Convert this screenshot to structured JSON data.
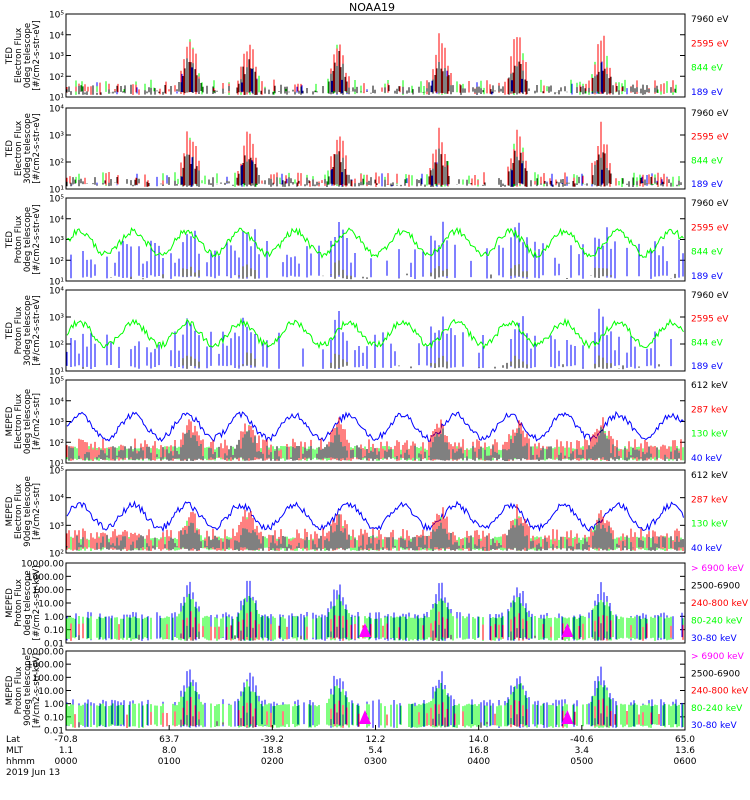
{
  "title": "NOAA19",
  "colors": {
    "black": "#000000",
    "red": "#ff0000",
    "green": "#00ff00",
    "blue": "#0000ff",
    "magenta": "#ff00ff"
  },
  "chart_data": {
    "type": "line",
    "x_ticks": [
      {
        "lat": "-70.8",
        "mlt": "1.1",
        "time": "0000"
      },
      {
        "lat": "63.7",
        "mlt": "8.0",
        "time": "0100"
      },
      {
        "lat": "-39.2",
        "mlt": "18.8",
        "time": "0200"
      },
      {
        "lat": "12.2",
        "mlt": "5.4",
        "time": "0300"
      },
      {
        "lat": "14.0",
        "mlt": "16.8",
        "time": "0400"
      },
      {
        "lat": "-40.6",
        "mlt": "3.4",
        "time": "0500"
      },
      {
        "lat": "65.0",
        "mlt": "13.6",
        "time": "0600"
      }
    ],
    "x_row_labels": [
      "Lat",
      "MLT",
      "hhmm"
    ],
    "date": "2019 Jun 13",
    "panels": [
      {
        "ylabel": [
          "TED",
          "Electron Flux",
          "0deg telescope",
          "[#/cm2-s-str-eV]"
        ],
        "yticks": [
          "10¹",
          "10²",
          "10³",
          "10⁴",
          "10⁵"
        ],
        "legend": [
          {
            "label": "7960 eV",
            "color": "#000000"
          },
          {
            "label": "2595 eV",
            "color": "#ff0000"
          },
          {
            "label": "844 eV",
            "color": "#00ff00"
          },
          {
            "label": "189 eV",
            "color": "#0000ff"
          }
        ]
      },
      {
        "ylabel": [
          "TED",
          "Electron Flux",
          "30deg telescope",
          "[#/cm2-s-str-eV]"
        ],
        "yticks": [
          "10¹",
          "10²",
          "10³",
          "10⁴"
        ],
        "legend": [
          {
            "label": "7960 eV",
            "color": "#000000"
          },
          {
            "label": "2595 eV",
            "color": "#ff0000"
          },
          {
            "label": "844 eV",
            "color": "#00ff00"
          },
          {
            "label": "189 eV",
            "color": "#0000ff"
          }
        ]
      },
      {
        "ylabel": [
          "TED",
          "Proton Flux",
          "0deg telescope",
          "[#/cm2-s-str-eV]"
        ],
        "yticks": [
          "10¹",
          "10²",
          "10³",
          "10⁴",
          "10⁵"
        ],
        "legend": [
          {
            "label": "7960 eV",
            "color": "#000000"
          },
          {
            "label": "2595 eV",
            "color": "#ff0000"
          },
          {
            "label": "844 eV",
            "color": "#00ff00"
          },
          {
            "label": "189 eV",
            "color": "#0000ff"
          }
        ]
      },
      {
        "ylabel": [
          "TED",
          "Proton Flux",
          "30deg telescope",
          "[#/cm2-s-str-eV]"
        ],
        "yticks": [
          "10¹",
          "10²",
          "10³",
          "10⁴"
        ],
        "legend": [
          {
            "label": "7960 eV",
            "color": "#000000"
          },
          {
            "label": "2595 eV",
            "color": "#ff0000"
          },
          {
            "label": "844 eV",
            "color": "#00ff00"
          },
          {
            "label": "189 eV",
            "color": "#0000ff"
          }
        ]
      },
      {
        "ylabel": [
          "MEPED",
          "Electron Flux",
          "0deg telescope",
          "[#/cm2-s-str]"
        ],
        "yticks": [
          "10¹",
          "10²",
          "10³",
          "10⁴",
          "10⁵"
        ],
        "legend": [
          {
            "label": "612 keV",
            "color": "#000000"
          },
          {
            "label": "287 keV",
            "color": "#ff0000"
          },
          {
            "label": "130 keV",
            "color": "#00ff00"
          },
          {
            "label": "40 keV",
            "color": "#0000ff"
          }
        ]
      },
      {
        "ylabel": [
          "MEPED",
          "Electron Flux",
          "90deg telescope",
          "[#/cm2-s-str]"
        ],
        "yticks": [
          "10²",
          "10³",
          "10⁴",
          "10⁵"
        ],
        "legend": [
          {
            "label": "612 keV",
            "color": "#000000"
          },
          {
            "label": "287 keV",
            "color": "#ff0000"
          },
          {
            "label": "130 keV",
            "color": "#00ff00"
          },
          {
            "label": "40 keV",
            "color": "#0000ff"
          }
        ]
      },
      {
        "ylabel": [
          "MEPED",
          "Proton Flux",
          "0deg telescope",
          "[#/cm2-s-str-keV]"
        ],
        "yticks": [
          "0.01",
          "0.10",
          "1.00",
          "10.00",
          "100.00",
          "1000.00",
          "10000.00"
        ],
        "legend": [
          {
            "label": "> 6900 keV",
            "color": "#ff00ff"
          },
          {
            "label": "2500-6900",
            "color": "#000000"
          },
          {
            "label": "240-800 keV",
            "color": "#ff0000"
          },
          {
            "label": "80-240 keV",
            "color": "#00ff00"
          },
          {
            "label": "30-80 keV",
            "color": "#0000ff"
          }
        ]
      },
      {
        "ylabel": [
          "MEPED",
          "Proton Flux",
          "90deg telescope",
          "[#/cm2-s-str-keV]"
        ],
        "yticks": [
          "0.01",
          "0.10",
          "1.00",
          "10.00",
          "100.00",
          "1000.00",
          "10000.00"
        ],
        "legend": [
          {
            "label": "> 6900 keV",
            "color": "#ff00ff"
          },
          {
            "label": "2500-6900",
            "color": "#000000"
          },
          {
            "label": "240-800 keV",
            "color": "#ff0000"
          },
          {
            "label": "80-240 keV",
            "color": "#00ff00"
          },
          {
            "label": "30-80 keV",
            "color": "#0000ff"
          }
        ]
      }
    ]
  }
}
